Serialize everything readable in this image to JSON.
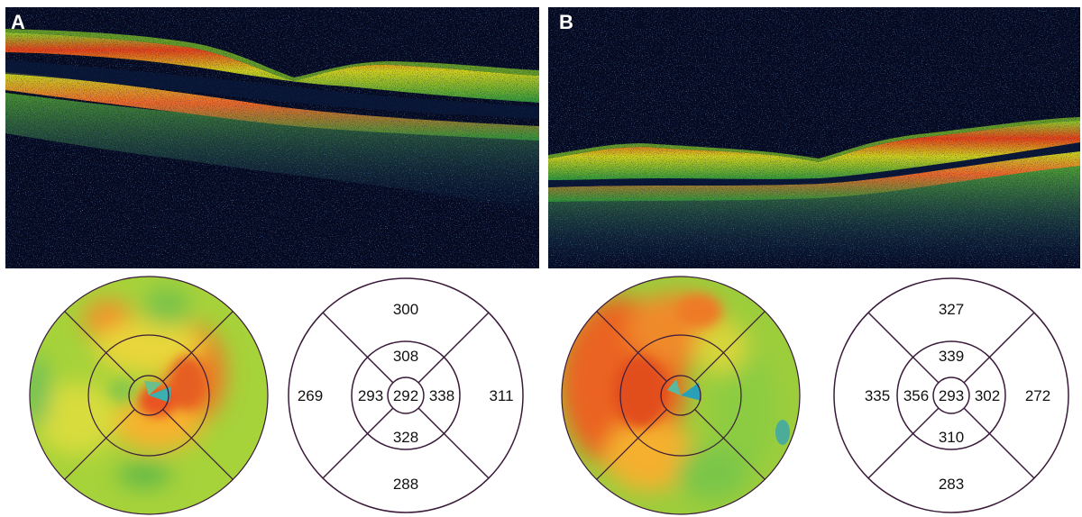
{
  "panels": [
    {
      "label": "A",
      "etdrs": {
        "superior_outer": "300",
        "superior_inner": "308",
        "temporal_outer": "269",
        "temporal_inner": "293",
        "center": "292",
        "nasal_inner": "338",
        "nasal_outer": "311",
        "inferior_inner": "328",
        "inferior_outer": "288"
      }
    },
    {
      "label": "B",
      "etdrs": {
        "superior_outer": "327",
        "superior_inner": "339",
        "temporal_outer": "335",
        "temporal_inner": "356",
        "center": "293",
        "nasal_inner": "302",
        "nasal_outer": "272",
        "inferior_inner": "310",
        "inferior_outer": "283"
      }
    }
  ],
  "colors": {
    "scan_background": "#050a1e",
    "retina_high": "#e8441a",
    "retina_mid": "#c8dc20",
    "retina_low": "#3aa83a",
    "noise": "#2a5a9a",
    "grid_line": "#3a1a3a"
  }
}
